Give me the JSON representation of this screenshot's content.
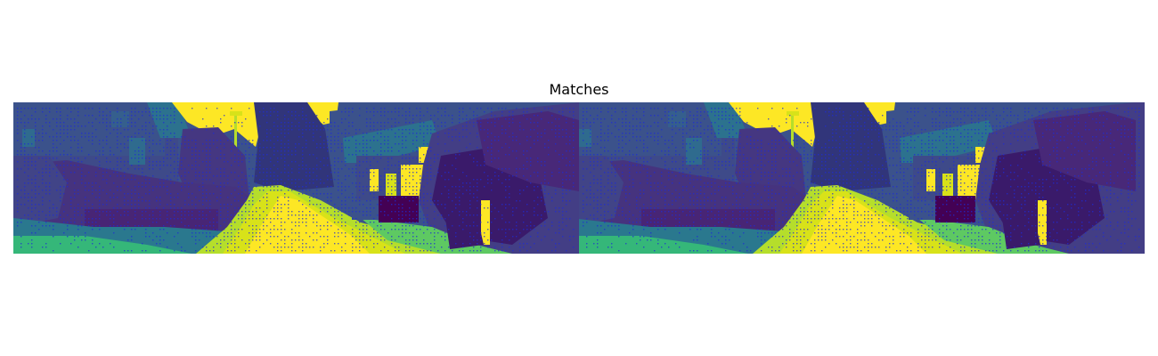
{
  "figure": {
    "title": "Matches"
  },
  "image_pair": {
    "colormap": "viridis",
    "colors": {
      "dark": "#440154",
      "indigo": "#3b528b",
      "teal": "#21918c",
      "green": "#5ec962",
      "yellow": "#fde725",
      "keypoint": "#1f2bd6"
    }
  }
}
